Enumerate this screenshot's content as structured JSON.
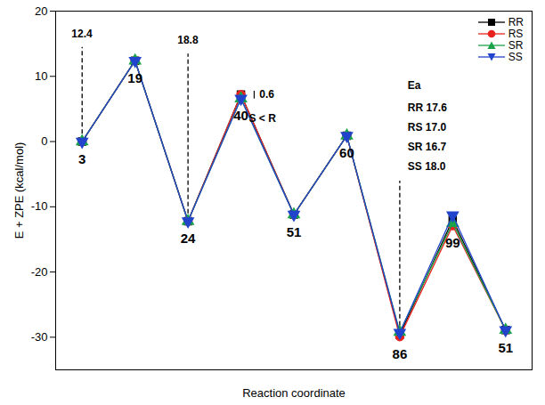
{
  "chart_data": {
    "type": "line",
    "x_label": "Reaction coordinate",
    "y_label": "E + ZPE (kcal/mol)",
    "categories": [
      "3",
      "19",
      "24",
      "40",
      "51",
      "60",
      "86",
      "99",
      "51"
    ],
    "series": [
      {
        "name": "RR",
        "color": "#000000",
        "marker": "square",
        "values": [
          0,
          12.4,
          -12.2,
          7.2,
          -11.2,
          0.9,
          -29.6,
          -12.0,
          -28.9
        ]
      },
      {
        "name": "RS",
        "color": "#e8221f",
        "marker": "circle",
        "values": [
          0,
          12.4,
          -12.2,
          7.2,
          -11.2,
          0.9,
          -29.9,
          -12.9,
          -28.9
        ]
      },
      {
        "name": "SR",
        "color": "#1aa34a",
        "marker": "triangle-up",
        "values": [
          0,
          12.4,
          -12.2,
          6.6,
          -11.2,
          0.9,
          -29.2,
          -12.5,
          -28.9
        ]
      },
      {
        "name": "SS",
        "color": "#2244cc",
        "marker": "triangle-down",
        "values": [
          0,
          12.4,
          -12.2,
          6.6,
          -11.2,
          0.9,
          -29.3,
          -11.3,
          -28.9
        ]
      }
    ],
    "ylim": [
      -35,
      20
    ],
    "yticks": [
      -30,
      -20,
      -10,
      0,
      10,
      20
    ],
    "tick_labels": "y",
    "legend": "top-right",
    "annotations": [
      {
        "text": "12.4",
        "x": -0.2,
        "y": 16.5
      },
      {
        "text": "18.8",
        "x": 1.8,
        "y": 15.5
      },
      {
        "text": "0.6",
        "x": 3.35,
        "y": 7.2
      },
      {
        "text": "S < R",
        "x": 3.15,
        "y": 3.6
      },
      {
        "text": "Ea",
        "x": 6.15,
        "y": 8.6
      },
      {
        "text": "RR 17.6",
        "x": 6.15,
        "y": 5.2
      },
      {
        "text": "RS 17.0",
        "x": 6.15,
        "y": 2.2
      },
      {
        "text": "SR 16.7",
        "x": 6.15,
        "y": -0.8
      },
      {
        "text": "SS 18.0",
        "x": 6.15,
        "y": -3.8
      }
    ],
    "guides": [
      {
        "x": 0,
        "y1": 1.2,
        "y2": 14.5,
        "line_style": "dashed"
      },
      {
        "x": 2,
        "y1": -11,
        "y2": 13.5,
        "line_style": "dashed"
      },
      {
        "x": 6,
        "y1": -28.2,
        "y2": -6,
        "line_style": "dashed"
      },
      {
        "x": 3.25,
        "y1": 6.6,
        "y2": 7.8,
        "line_style": "solid"
      }
    ]
  }
}
